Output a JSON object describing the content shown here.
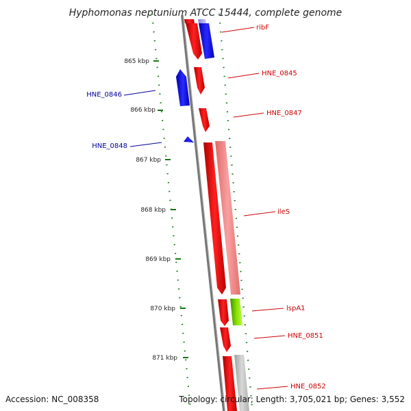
{
  "title": "Hyphomonas neptunium ATCC 15444, complete genome",
  "footer": {
    "accession": "Accession: NC_008358",
    "topology": "Topology: circular; Length: 3,705,021 bp; Genes: 3,552"
  },
  "ticks": [
    "865 kbp",
    "866 kbp",
    "867 kbp",
    "868 kbp",
    "869 kbp",
    "870 kbp",
    "871 kbp"
  ],
  "genes_forward": [
    {
      "label": "ribF",
      "color": "#cc0000"
    },
    {
      "label": "HNE_0845",
      "color": "#cc0000"
    },
    {
      "label": "HNE_0847",
      "color": "#cc0000"
    },
    {
      "label": "ileS",
      "color": "#cc0000"
    },
    {
      "label": "lspA1",
      "color": "#cc0000"
    },
    {
      "label": "HNE_0851",
      "color": "#cc0000"
    },
    {
      "label": "HNE_0852",
      "color": "#cc0000"
    }
  ],
  "genes_reverse": [
    {
      "label": "HNE_0846",
      "color": "#000099"
    },
    {
      "label": "HNE_0848",
      "color": "#000099"
    }
  ],
  "colors": {
    "forward_cds": "#ff0000",
    "reverse_cds": "#0000ff",
    "pink_track": "#f08a8a",
    "green_track": "#66cc00",
    "gray_track": "#bbbbbb",
    "backbone": "#777777",
    "tick_dots": "#117711"
  }
}
